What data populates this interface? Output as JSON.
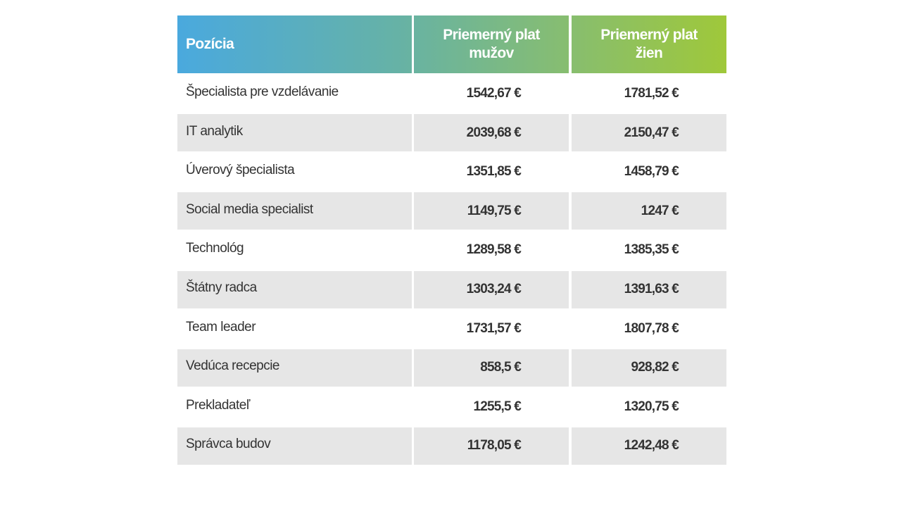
{
  "header": {
    "position": "Pozícia",
    "men": "Priemerný plat mužov",
    "women": "Priemerný plat žien"
  },
  "rows": [
    {
      "position": "Špecialista pre vzdelávanie",
      "men": "1542,67 €",
      "women": "1781,52 €"
    },
    {
      "position": "IT analytik",
      "men": "2039,68 €",
      "women": "2150,47 €"
    },
    {
      "position": "Úverový špecialista",
      "men": "1351,85 €",
      "women": "1458,79 €"
    },
    {
      "position": "Social media specialist",
      "men": "1149,75 €",
      "women": "1247 €"
    },
    {
      "position": "Technológ",
      "men": "1289,58 €",
      "women": "1385,35 €"
    },
    {
      "position": "Štátny radca",
      "men": "1303,24 €",
      "women": "1391,63 €"
    },
    {
      "position": "Team leader",
      "men": "1731,57 €",
      "women": "1807,78 €"
    },
    {
      "position": "Vedúca recepcie",
      "men": "858,5 €",
      "women": "928,82 €"
    },
    {
      "position": "Prekladateľ",
      "men": "1255,5 €",
      "women": "1320,75 €"
    },
    {
      "position": "Správca budov",
      "men": "1178,05 €",
      "women": "1242,48 €"
    }
  ]
}
